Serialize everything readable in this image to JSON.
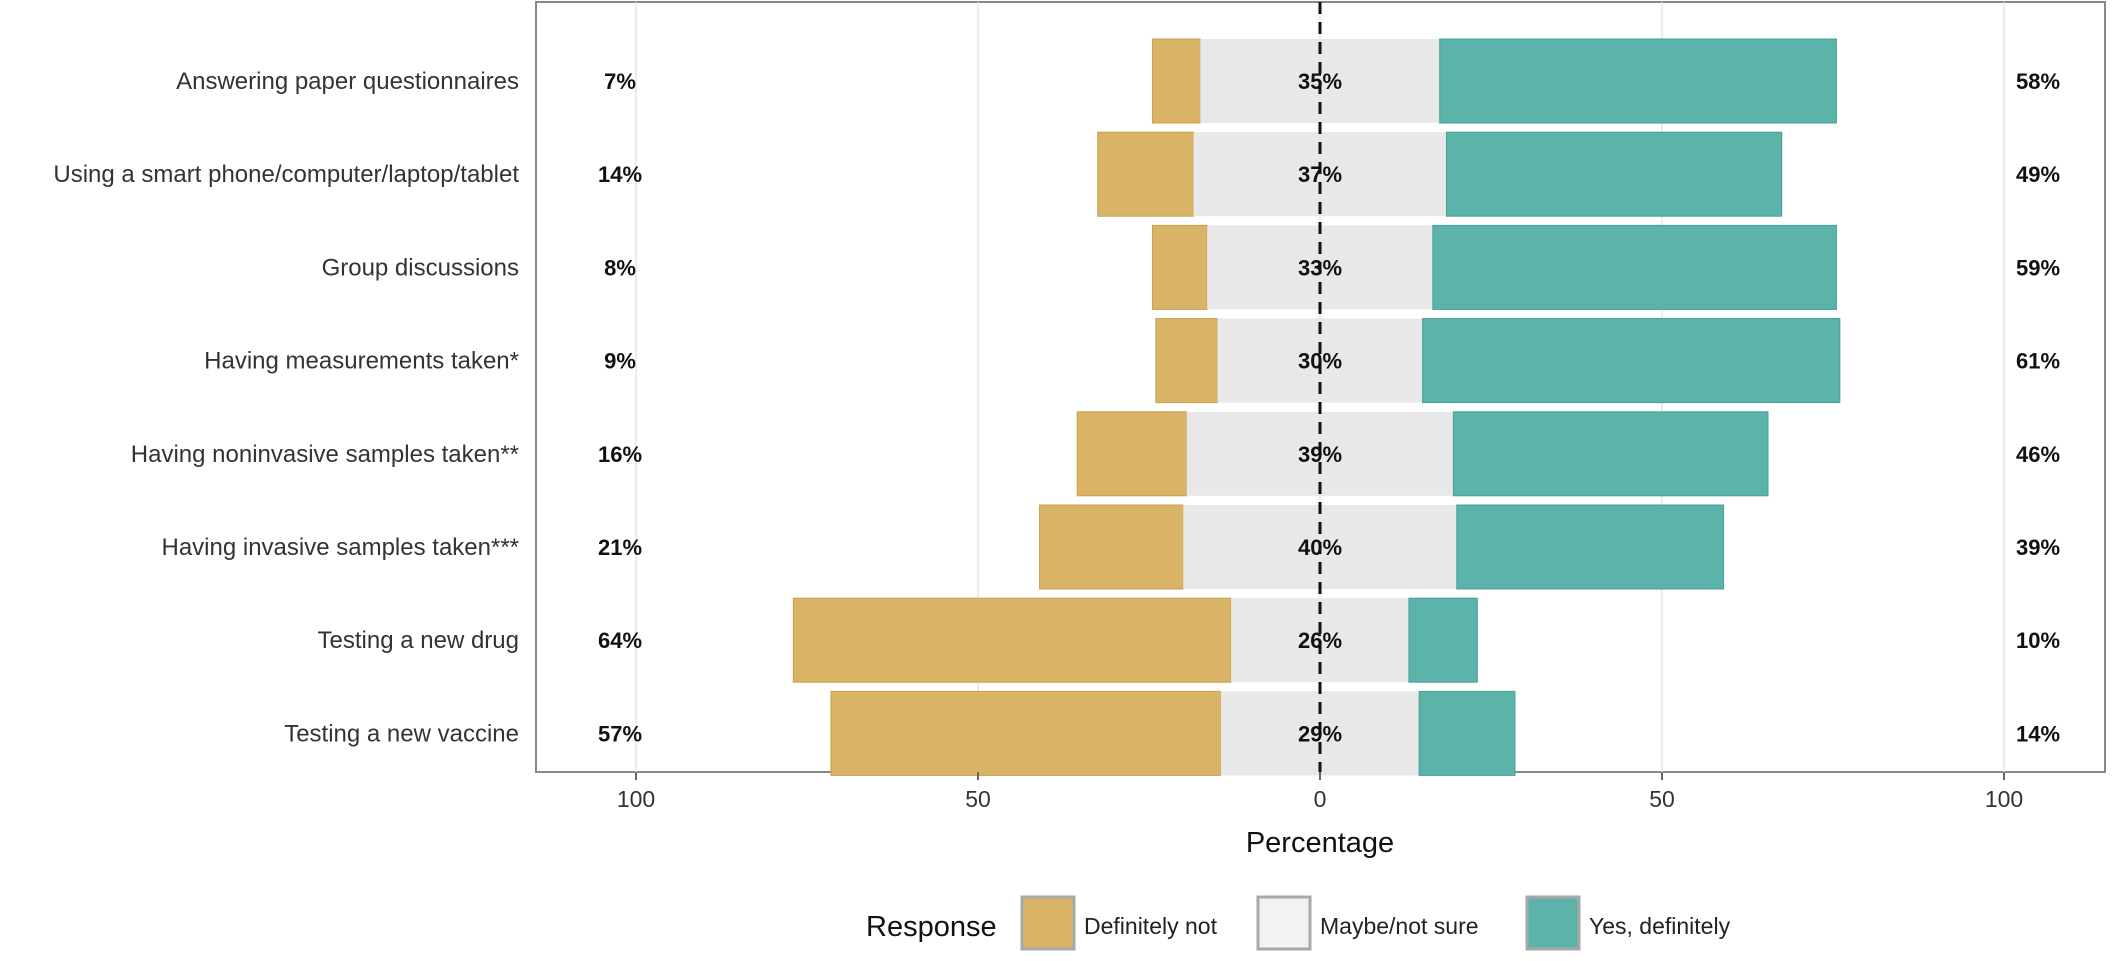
{
  "chart_data": {
    "type": "bar",
    "orientation": "horizontal",
    "stacking": "diverging",
    "categories": [
      "Answering paper questionnaires",
      "Using a smart phone/computer/laptop/tablet",
      "Group discussions",
      "Having measurements taken*",
      "Having noninvasive samples taken**",
      "Having invasive samples taken***",
      "Testing a new drug",
      "Testing a new vaccine"
    ],
    "series": [
      {
        "name": "Definitely not",
        "values": [
          7,
          14,
          8,
          9,
          16,
          21,
          64,
          57
        ],
        "labels": [
          "7%",
          "14%",
          "8%",
          "9%",
          "16%",
          "21%",
          "64%",
          "57%"
        ]
      },
      {
        "name": "Maybe/not sure",
        "values": [
          35,
          37,
          33,
          30,
          39,
          40,
          26,
          29
        ],
        "labels": [
          "35%",
          "37%",
          "33%",
          "30%",
          "39%",
          "40%",
          "26%",
          "29%"
        ]
      },
      {
        "name": "Yes, definitely",
        "values": [
          58,
          49,
          59,
          61,
          46,
          39,
          10,
          14
        ],
        "labels": [
          "58%",
          "49%",
          "59%",
          "61%",
          "46%",
          "39%",
          "10%",
          "14%"
        ]
      }
    ],
    "colors": [
      "#D9B466",
      "#E8E8E8",
      "#5BB3AA"
    ],
    "xlabel": "Percentage",
    "xlim": [
      -115,
      115
    ],
    "xticks": [
      -100,
      -50,
      0,
      50,
      100
    ],
    "xtick_labels": [
      "100",
      "50",
      "0",
      "50",
      "100"
    ],
    "zero_line": "dashed",
    "legend_title": "Response",
    "legend_position": "bottom",
    "grid": true
  }
}
